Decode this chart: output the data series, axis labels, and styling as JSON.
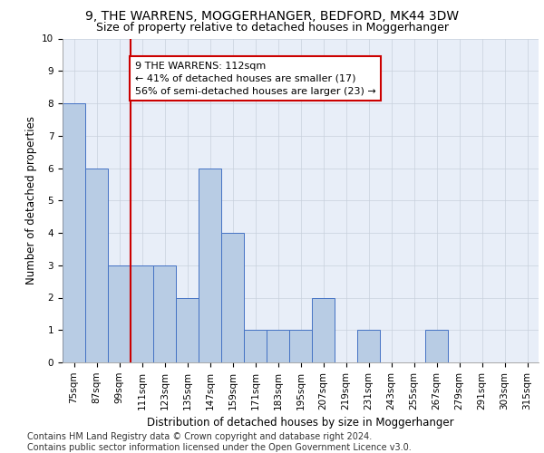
{
  "title": "9, THE WARRENS, MOGGERHANGER, BEDFORD, MK44 3DW",
  "subtitle": "Size of property relative to detached houses in Moggerhanger",
  "xlabel": "Distribution of detached houses by size in Moggerhanger",
  "ylabel": "Number of detached properties",
  "footer_line1": "Contains HM Land Registry data © Crown copyright and database right 2024.",
  "footer_line2": "Contains public sector information licensed under the Open Government Licence v3.0.",
  "annotation_line1": "9 THE WARRENS: 112sqm",
  "annotation_line2": "← 41% of detached houses are smaller (17)",
  "annotation_line3": "56% of semi-detached houses are larger (23) →",
  "bar_color": "#b8cce4",
  "bar_edge_color": "#4472c4",
  "ref_line_color": "#cc0000",
  "annotation_box_color": "#cc0000",
  "categories": [
    "75sqm",
    "87sqm",
    "99sqm",
    "111sqm",
    "123sqm",
    "135sqm",
    "147sqm",
    "159sqm",
    "171sqm",
    "183sqm",
    "195sqm",
    "207sqm",
    "219sqm",
    "231sqm",
    "243sqm",
    "255sqm",
    "267sqm",
    "279sqm",
    "291sqm",
    "303sqm",
    "315sqm"
  ],
  "values": [
    8,
    6,
    3,
    3,
    3,
    2,
    6,
    4,
    1,
    1,
    1,
    2,
    0,
    1,
    0,
    0,
    1,
    0,
    0,
    0,
    0
  ],
  "ylim": [
    0,
    10
  ],
  "yticks": [
    0,
    1,
    2,
    3,
    4,
    5,
    6,
    7,
    8,
    9,
    10
  ],
  "ref_line_x": 3,
  "background_color": "#e8eef8",
  "grid_color": "#c8d0dc",
  "title_fontsize": 10,
  "subtitle_fontsize": 9,
  "axis_label_fontsize": 8.5,
  "tick_fontsize": 7.5,
  "annotation_fontsize": 8,
  "footer_fontsize": 7
}
